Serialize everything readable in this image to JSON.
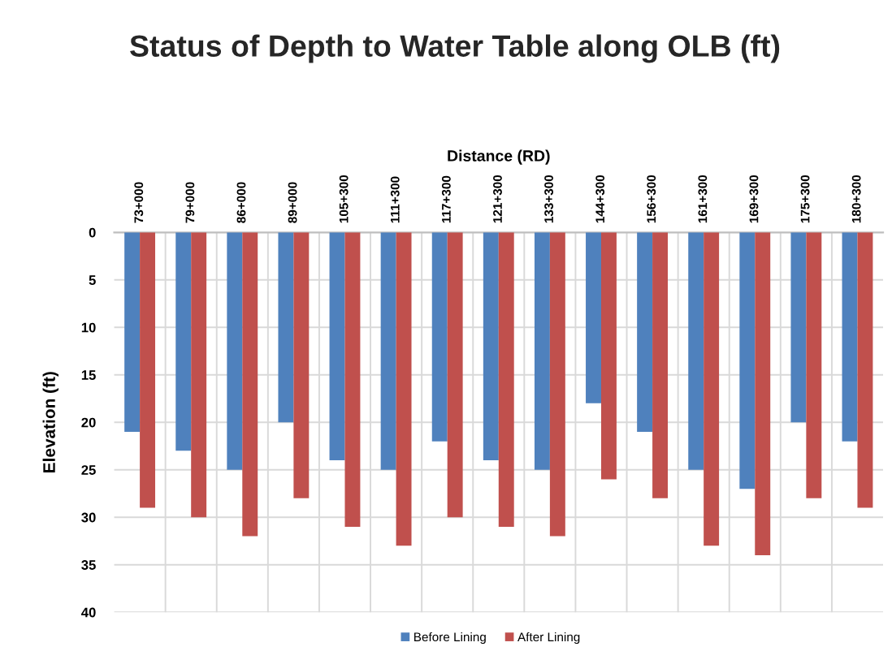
{
  "chart_data": {
    "type": "bar",
    "title": "Status of Depth to Water Table along OLB (ft)",
    "xlabel": "Distance (RD)",
    "ylabel": "Elevation (ft)",
    "categories": [
      "73+000",
      "79+000",
      "86+000",
      "89+000",
      "105+300",
      "111+300",
      "117+300",
      "121+300",
      "133+300",
      "144+300",
      "156+300",
      "161+300",
      "169+300",
      "175+300",
      "180+300"
    ],
    "series": [
      {
        "name": "Before Lining",
        "color": "#4f81bd",
        "values": [
          21,
          23,
          25,
          20,
          24,
          25,
          22,
          24,
          25,
          18,
          21,
          25,
          27,
          20,
          22
        ]
      },
      {
        "name": "After Lining",
        "color": "#c0504d",
        "values": [
          29,
          30,
          32,
          28,
          31,
          33,
          30,
          31,
          32,
          26,
          28,
          33,
          34,
          28,
          29
        ]
      }
    ],
    "ylim": [
      40,
      0
    ],
    "yticks": [
      0,
      5,
      10,
      15,
      20,
      25,
      30,
      35,
      40
    ],
    "grid": true,
    "legend": "bottom"
  }
}
